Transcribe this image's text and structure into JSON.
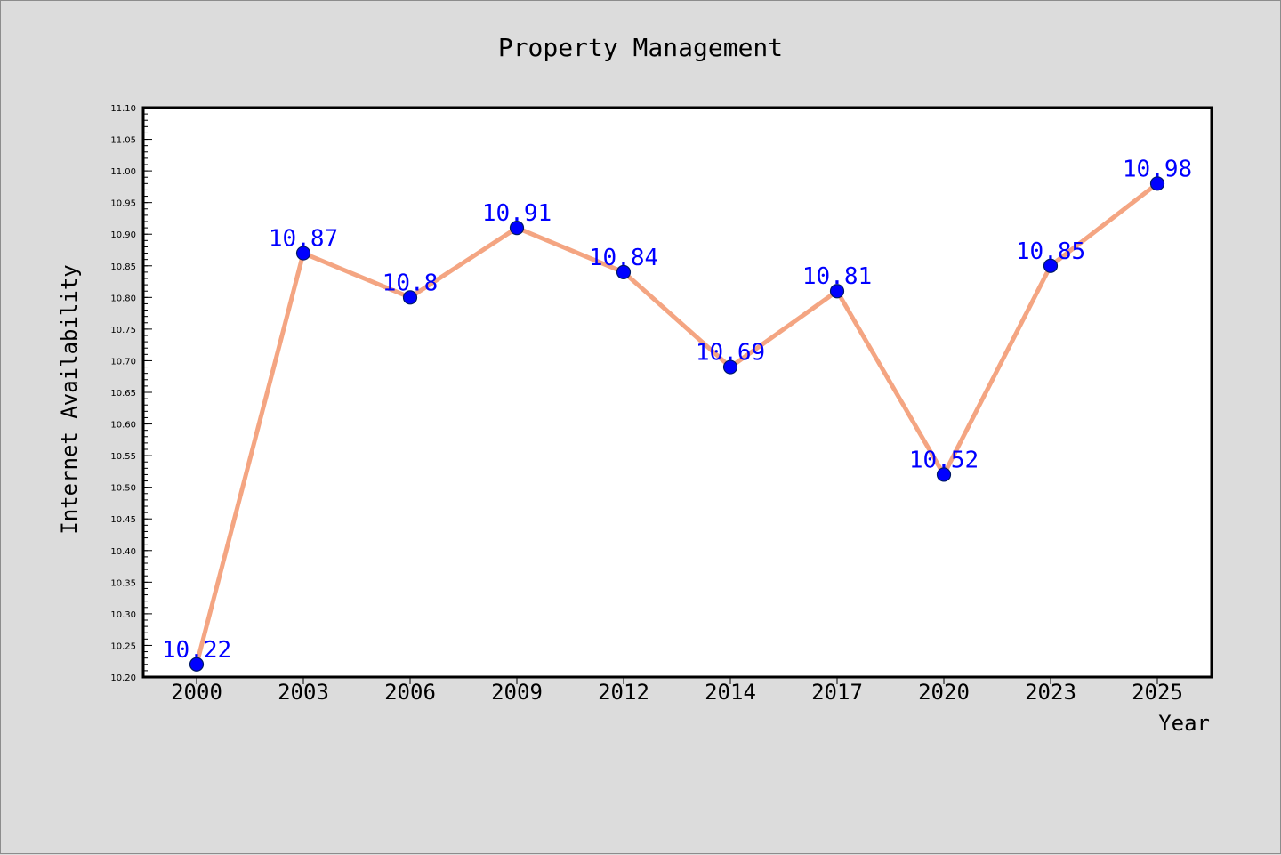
{
  "chart_data": {
    "type": "line",
    "title": "Property Management",
    "xlabel": "Year",
    "ylabel": "Internet Availability",
    "categories": [
      "2000",
      "2003",
      "2006",
      "2009",
      "2012",
      "2014",
      "2017",
      "2020",
      "2023",
      "2025"
    ],
    "series": [
      {
        "values": [
          10.22,
          10.87,
          10.8,
          10.91,
          10.84,
          10.69,
          10.81,
          10.52,
          10.85,
          10.98
        ],
        "labels": [
          "10.22",
          "10.87",
          "10.8",
          "10.91",
          "10.84",
          "10.69",
          "10.81",
          "10.52",
          "10.85",
          "10.98"
        ],
        "line_color": "#f4a582",
        "marker_color": "#0000ff"
      }
    ],
    "ylim": [
      10.2,
      11.1
    ],
    "y_ticks": [
      "10.20",
      "10.25",
      "10.30",
      "10.35",
      "10.40",
      "10.45",
      "10.50",
      "10.55",
      "10.60",
      "10.65",
      "10.70",
      "10.75",
      "10.80",
      "10.85",
      "10.90",
      "10.95",
      "11.00",
      "11.05",
      "11.10"
    ],
    "grid": false,
    "legend": "none",
    "colors": {
      "background": "#dcdcdc",
      "plot_background": "#ffffff",
      "data_label": "#0000ff"
    }
  }
}
